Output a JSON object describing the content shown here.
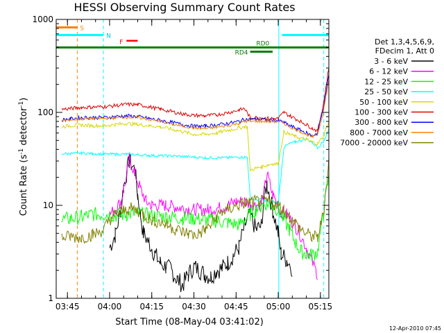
{
  "chart_data": {
    "type": "line",
    "title": "HESSI Observing Summary Count Rates",
    "xlabel": "Start Time (08-May-04 03:41:02)",
    "ylabel_main": "Count Rate (s",
    "ylabel_sup1": "-1",
    "ylabel_mid": " detector",
    "ylabel_sup2": "-1",
    "ylabel_end": ")",
    "yscale": "log",
    "ylim": [
      1,
      1000
    ],
    "xlim_min": [
      221,
      318
    ],
    "x_tick_labels": [
      "03:45",
      "04:00",
      "04:15",
      "04:30",
      "04:45",
      "05:00",
      "05:15"
    ],
    "x_tick_min": [
      225,
      240,
      255,
      270,
      285,
      300,
      315
    ],
    "y_tick_labels": [
      "1",
      "10",
      "100",
      "1000"
    ],
    "y_tick_values": [
      1,
      10,
      100,
      1000
    ],
    "date_stamp": "12-Apr-2010 07:45",
    "legend": {
      "title1": "Det 1,3,4,5,6,9,",
      "title2": "FDecim 1, Att 0",
      "entries": [
        {
          "label": "3 - 6 keV",
          "color": "#000000"
        },
        {
          "label": "6 - 12 keV",
          "color": "#ff00ff"
        },
        {
          "label": "12 - 25 keV",
          "color": "#00ff00"
        },
        {
          "label": "25 - 50 keV",
          "color": "#00ffff"
        },
        {
          "label": "50 - 100 keV",
          "color": "#d8d800"
        },
        {
          "label": "100 - 300 keV",
          "color": "#e00000"
        },
        {
          "label": "300 - 800 keV",
          "color": "#0000ff"
        },
        {
          "label": "800 - 7000 keV",
          "color": "#ff8000"
        },
        {
          "label": "7000 - 20000 keV",
          "color": "#808000"
        }
      ]
    },
    "flags": {
      "S": {
        "label": "S",
        "color": "#ff8000",
        "x_min": [
          221,
          228.5
        ],
        "y": 820
      },
      "N": {
        "label": "N",
        "color": "#00ffff",
        "segments_min": [
          [
            221,
            237.8
          ],
          [
            301.3,
            318
          ]
        ],
        "y": 680
      },
      "F": {
        "label": "F",
        "color": "#ff0000",
        "x_min": [
          246,
          250
        ],
        "y": 590
      },
      "RD0": {
        "label": "RD0",
        "color": "#008000",
        "x_min": [
          221,
          318
        ],
        "y": 500
      },
      "RD4": {
        "label": "RD4",
        "color": "#008000",
        "x_min": [
          290,
          298
        ],
        "y": 450
      }
    },
    "markers": {
      "s_dashed_min": 228.5,
      "n_dashed_min": [
        237.8,
        316.2
      ],
      "night_solid_min": [
        221,
        300.2
      ]
    },
    "series": [
      {
        "name": "3 - 6 keV",
        "color": "#000000",
        "x": [
          222.5,
          228,
          234,
          237,
          240,
          242,
          244,
          245,
          247,
          249,
          250,
          251,
          252,
          254,
          256,
          258,
          260,
          262,
          264,
          266,
          268,
          270,
          272,
          274,
          276,
          278,
          280,
          282,
          284,
          286,
          288,
          290,
          292,
          294,
          295,
          296,
          298,
          300,
          301,
          303,
          305,
          307
        ],
        "y": [
          null,
          null,
          null,
          null,
          3.5,
          4.8,
          9,
          16,
          30,
          24,
          13,
          8,
          5,
          4,
          3,
          2.4,
          2.2,
          2,
          1.6,
          1.4,
          1.8,
          2.2,
          2,
          1.8,
          1.7,
          2,
          2.1,
          2.4,
          2.9,
          3.5,
          6,
          8,
          5.5,
          6,
          13,
          17,
          9,
          5,
          3,
          2.6,
          2.1,
          null
        ]
      },
      {
        "name": "6 - 12 keV",
        "color": "#ff00ff",
        "x": [
          237,
          239,
          240,
          242,
          244,
          246,
          247,
          249,
          251,
          253,
          255,
          260,
          265,
          270,
          275,
          280,
          282,
          285,
          288,
          290,
          292,
          294,
          295,
          296,
          298,
          300,
          301,
          303,
          305,
          307,
          310,
          314,
          317
        ],
        "y": [
          null,
          null,
          8,
          9,
          11,
          20,
          32,
          22,
          15,
          11,
          10,
          10,
          9.5,
          9,
          9,
          9.5,
          10,
          11,
          11,
          10.5,
          10,
          10.5,
          14,
          22,
          13,
          10,
          8.5,
          8,
          6.5,
          5.5,
          3.5,
          1.8,
          null
        ]
      },
      {
        "name": "12 - 25 keV",
        "color": "#00ff00",
        "x": [
          223,
          226,
          230,
          234,
          238,
          242,
          246,
          250,
          254,
          258,
          262,
          266,
          270,
          274,
          278,
          282,
          286,
          288,
          290,
          292,
          294,
          296,
          298,
          300,
          302,
          304,
          306,
          308,
          310,
          312,
          314,
          316,
          318
        ],
        "y": [
          7,
          7.2,
          7.5,
          8,
          8,
          7.8,
          8,
          8.2,
          7.8,
          7.6,
          7.5,
          7.3,
          7.2,
          7,
          6.8,
          6.5,
          6.2,
          7,
          8,
          9,
          10,
          10.5,
          10,
          9,
          7,
          5.5,
          4,
          3.2,
          3,
          2.9,
          3.2,
          8,
          20
        ]
      },
      {
        "name": "25 - 50 keV",
        "color": "#00ffff",
        "x": [
          223,
          226,
          230,
          234,
          238,
          242,
          246,
          250,
          254,
          258,
          262,
          266,
          270,
          274,
          278,
          282,
          286,
          288,
          289,
          290,
          292,
          294,
          296,
          298,
          300,
          302,
          304,
          306,
          308,
          310,
          312,
          314,
          316,
          318
        ],
        "y": [
          36,
          36,
          36.5,
          36,
          35.5,
          35.5,
          35.5,
          35,
          34.5,
          34.2,
          34,
          33.5,
          33,
          32.5,
          32.5,
          32.5,
          33,
          33,
          33,
          12,
          11.5,
          11.5,
          11,
          11,
          10.5,
          42,
          46,
          48,
          50,
          52,
          48,
          42,
          48,
          65
        ]
      },
      {
        "name": "50 - 100 keV",
        "color": "#d8d800",
        "x": [
          223,
          226,
          230,
          234,
          238,
          242,
          246,
          250,
          254,
          258,
          262,
          266,
          270,
          274,
          278,
          282,
          286,
          288,
          289,
          290,
          292,
          294,
          296,
          298,
          300,
          302,
          304,
          306,
          308,
          310,
          312,
          314,
          316,
          318
        ],
        "y": [
          70,
          72,
          73,
          72,
          72,
          74,
          76,
          74,
          72,
          70,
          66,
          62,
          58,
          58,
          60,
          64,
          68,
          70,
          70,
          24,
          25,
          26,
          27,
          28,
          28,
          62,
          58,
          55,
          53,
          51,
          48,
          46,
          55,
          80
        ]
      },
      {
        "name": "100 - 300 keV",
        "color": "#e00000",
        "x": [
          223,
          226,
          230,
          234,
          238,
          242,
          246,
          250,
          254,
          258,
          262,
          266,
          270,
          274,
          278,
          282,
          286,
          288,
          290,
          292,
          294,
          296,
          298,
          300,
          302,
          304,
          306,
          308,
          310,
          312,
          314,
          316,
          318
        ],
        "y": [
          108,
          110,
          113,
          114,
          115,
          118,
          122,
          121,
          115,
          108,
          102,
          96,
          93,
          92,
          94,
          99,
          106,
          110,
          88,
          88,
          88,
          86,
          86,
          86,
          100,
          92,
          86,
          80,
          74,
          68,
          63,
          120,
          300
        ]
      },
      {
        "name": "300 - 800 keV",
        "color": "#0000ff",
        "x": [
          223,
          226,
          230,
          234,
          238,
          242,
          246,
          250,
          254,
          258,
          262,
          266,
          270,
          274,
          278,
          282,
          286,
          288,
          290,
          292,
          294,
          296,
          298,
          300,
          302,
          304,
          306,
          308,
          310,
          312,
          314,
          316,
          318
        ],
        "y": [
          83,
          85,
          88,
          88,
          88,
          90,
          92,
          90,
          86,
          82,
          78,
          74,
          71,
          71,
          73,
          76,
          80,
          84,
          84,
          84,
          84,
          82,
          82,
          82,
          78,
          72,
          68,
          64,
          60,
          56,
          60,
          110,
          250
        ]
      },
      {
        "name": "800 - 7000 keV",
        "color": "#ff8000",
        "x": [
          223,
          226,
          230,
          234,
          238,
          242,
          246,
          250,
          254,
          258,
          262,
          266,
          270,
          274,
          278,
          282,
          286,
          288,
          290,
          292,
          294,
          296,
          298,
          300,
          302,
          304,
          306,
          308,
          310,
          312,
          314,
          316,
          318
        ],
        "y": [
          81,
          83,
          85,
          86,
          86,
          87,
          89,
          88,
          84,
          80,
          75,
          71,
          68,
          67,
          69,
          72,
          76,
          80,
          80,
          80,
          80,
          80,
          80,
          80,
          76,
          70,
          66,
          62,
          58,
          54,
          58,
          100,
          220
        ]
      },
      {
        "name": "7000 - 20000 keV",
        "color": "#808000",
        "x": [
          223,
          226,
          230,
          234,
          238,
          240,
          242,
          244,
          246,
          248,
          250,
          252,
          254,
          256,
          258,
          260,
          262,
          264,
          266,
          268,
          270,
          272,
          274,
          276,
          278,
          280,
          282,
          284,
          286,
          288,
          290,
          292,
          294,
          296,
          298,
          300,
          302,
          304,
          306,
          308,
          310,
          312,
          314,
          316,
          318
        ],
        "y": [
          4.5,
          4.6,
          4.5,
          4.8,
          5.5,
          7,
          8,
          8.5,
          9,
          9.2,
          8.8,
          8,
          7.2,
          6.8,
          6.5,
          6.3,
          5.8,
          5.5,
          5.2,
          5,
          4.8,
          5,
          5.5,
          6,
          7.5,
          8.5,
          9,
          9.5,
          10,
          10.5,
          10.8,
          11,
          11,
          11,
          10.5,
          10,
          9,
          7.5,
          6.5,
          5.5,
          5,
          4.6,
          4.5,
          8,
          30
        ]
      }
    ]
  }
}
